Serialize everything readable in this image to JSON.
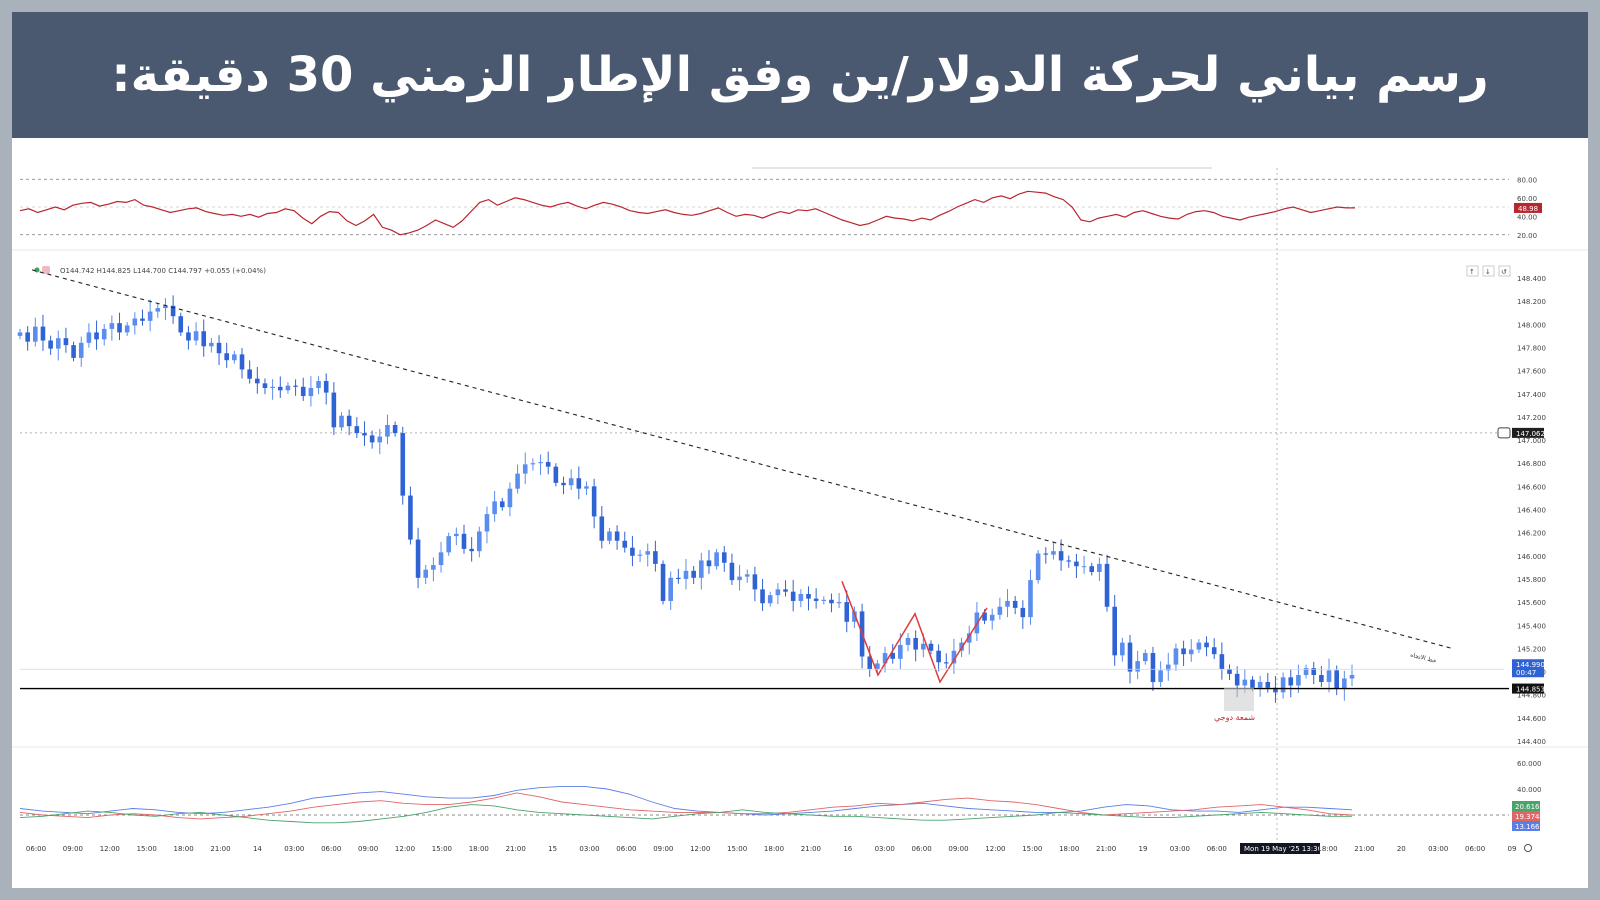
{
  "page": {
    "title": "رسم بياني لحركة الدولار/ين وفق الإطار الزمني 30 دقيقة:"
  },
  "chart_data": {
    "type": "candlestick",
    "symbol_ohlc": "O144.742 H144.825 L144.700 C144.797 +0.055 (+0.04%)",
    "price_ticks": [
      "148.400",
      "148.200",
      "148.000",
      "147.800",
      "147.600",
      "147.400",
      "147.200",
      "147.000",
      "146.800",
      "146.600",
      "146.400",
      "146.200",
      "146.000",
      "145.800",
      "145.600",
      "145.400",
      "145.200",
      "145.000",
      "144.800",
      "144.600",
      "144.400"
    ],
    "price_ylim": [
      144.4,
      148.4
    ],
    "rsi_ticks": [
      "80.00",
      "60.00",
      "40.00",
      "20.00"
    ],
    "rsi_ylim": [
      10,
      90
    ],
    "rsi_value": "48.98",
    "adx_ticks": [
      "60.000",
      "40.000"
    ],
    "adx_ylim": [
      10,
      70
    ],
    "adx_values": [
      "20.616",
      "19.374",
      "13.166"
    ],
    "x_labels": [
      "06:00",
      "09:00",
      "12:00",
      "15:00",
      "18:00",
      "21:00",
      "14",
      "03:00",
      "06:00",
      "09:00",
      "12:00",
      "15:00",
      "18:00",
      "21:00",
      "15",
      "03:00",
      "06:00",
      "09:00",
      "12:00",
      "15:00",
      "18:00",
      "21:00",
      "16",
      "03:00",
      "06:00",
      "09:00",
      "12:00",
      "15:00",
      "18:00",
      "21:00",
      "19",
      "03:00",
      "06:00",
      "09:00",
      "Mon 19 May '25  13:30",
      "18:00",
      "21:00",
      "20",
      "03:00",
      "06:00",
      "09"
    ],
    "crosshair_price": "147.062",
    "current_price": "144.990",
    "countdown": "00:47",
    "support_price": "144.853",
    "support_level": 144.853,
    "crosshair_level": 147.062,
    "trendline": {
      "label": "خط الاتجاه",
      "start_price": 148.47,
      "end_price": 145.2
    },
    "doji_label": "شمعة دوجي",
    "closes": [
      147.93,
      147.85,
      147.98,
      147.86,
      147.79,
      147.88,
      147.82,
      147.71,
      147.84,
      147.93,
      147.87,
      147.96,
      148.01,
      147.93,
      147.99,
      148.05,
      148.03,
      148.11,
      148.14,
      148.16,
      148.07,
      147.93,
      147.86,
      147.94,
      147.81,
      147.84,
      147.75,
      147.69,
      147.74,
      147.61,
      147.53,
      147.49,
      147.45,
      147.46,
      147.43,
      147.47,
      147.46,
      147.38,
      147.45,
      147.51,
      147.41,
      147.11,
      147.21,
      147.12,
      147.06,
      147.04,
      146.98,
      147.03,
      147.13,
      147.06,
      146.52,
      146.14,
      145.81,
      145.88,
      145.92,
      146.03,
      146.17,
      146.19,
      146.06,
      146.04,
      146.21,
      146.36,
      146.47,
      146.42,
      146.58,
      146.71,
      146.79,
      146.8,
      146.81,
      146.77,
      146.63,
      146.61,
      146.67,
      146.58,
      146.6,
      146.34,
      146.13,
      146.21,
      146.13,
      146.07,
      146.0,
      146.01,
      146.04,
      145.93,
      145.61,
      145.81,
      145.8,
      145.87,
      145.81,
      145.96,
      145.91,
      146.03,
      145.94,
      145.79,
      145.82,
      145.84,
      145.71,
      145.59,
      145.66,
      145.71,
      145.69,
      145.61,
      145.67,
      145.63,
      145.61,
      145.62,
      145.59,
      145.6,
      145.43,
      145.52,
      145.13,
      145.02,
      145.07,
      145.16,
      145.11,
      145.23,
      145.29,
      145.19,
      145.24,
      145.18,
      145.08,
      145.07,
      145.18,
      145.25,
      145.33,
      145.51,
      145.44,
      145.49,
      145.56,
      145.61,
      145.55,
      145.47,
      145.79,
      146.02,
      146.01,
      146.04,
      145.96,
      145.95,
      145.91,
      145.91,
      145.86,
      145.93,
      145.56,
      145.14,
      145.25,
      145.0,
      145.09,
      145.16,
      144.91,
      145.01,
      145.06,
      145.2,
      145.15,
      145.19,
      145.25,
      145.21,
      145.15,
      145.02,
      144.98,
      144.88,
      144.93,
      144.86,
      144.91,
      144.86,
      144.82,
      144.95,
      144.88,
      144.97,
      145.03,
      144.97,
      144.91,
      145.01,
      144.85,
      144.94,
      144.97
    ],
    "rsi": [
      46,
      48,
      44,
      47,
      50,
      47,
      52,
      54,
      55,
      51,
      53,
      56,
      55,
      58,
      52,
      50,
      47,
      44,
      46,
      48,
      49,
      45,
      43,
      41,
      42,
      40,
      42,
      39,
      43,
      44,
      48,
      46,
      38,
      32,
      40,
      45,
      44,
      35,
      30,
      35,
      42,
      28,
      25,
      20,
      22,
      25,
      30,
      36,
      32,
      28,
      35,
      45,
      55,
      58,
      52,
      56,
      60,
      58,
      55,
      52,
      50,
      53,
      55,
      51,
      48,
      52,
      55,
      53,
      50,
      46,
      44,
      43,
      45,
      47,
      44,
      42,
      41,
      43,
      46,
      49,
      44,
      40,
      42,
      41,
      38,
      42,
      45,
      43,
      47,
      46,
      48,
      44,
      40,
      36,
      33,
      30,
      32,
      36,
      40,
      38,
      37,
      35,
      38,
      36,
      41,
      45,
      50,
      54,
      58,
      55,
      60,
      62,
      59,
      64,
      67,
      66,
      65,
      61,
      58,
      50,
      36,
      34,
      38,
      40,
      42,
      39,
      44,
      46,
      43,
      40,
      38,
      37,
      42,
      45,
      46,
      44,
      40,
      38,
      36,
      39,
      41,
      43,
      45,
      48,
      50,
      47,
      44,
      46,
      48,
      50,
      49,
      48.98
    ],
    "adx": {
      "series1": [
        25,
        23,
        22,
        21,
        23,
        25,
        24,
        22,
        21,
        22,
        24,
        26,
        29,
        33,
        35,
        37,
        38,
        36,
        34,
        33,
        33,
        35,
        39,
        41,
        42,
        42,
        40,
        36,
        30,
        25,
        23,
        22,
        21,
        20,
        21,
        22,
        23,
        25,
        27,
        28,
        29,
        27,
        25,
        24,
        23,
        22,
        22,
        23,
        26,
        28,
        27,
        24,
        23,
        23,
        22,
        24,
        26,
        26,
        25,
        24
      ],
      "series2": [
        22,
        20,
        19,
        18,
        20,
        21,
        20,
        18,
        17,
        18,
        19,
        21,
        23,
        26,
        28,
        30,
        31,
        29,
        28,
        28,
        30,
        33,
        37,
        34,
        30,
        28,
        26,
        24,
        23,
        22,
        22,
        22,
        21,
        21,
        22,
        24,
        26,
        27,
        29,
        28,
        30,
        32,
        33,
        31,
        30,
        28,
        25,
        22,
        20,
        21,
        22,
        23,
        24,
        26,
        27,
        28,
        26,
        24,
        21,
        20
      ],
      "series3": [
        18,
        19,
        21,
        23,
        22,
        20,
        19,
        21,
        22,
        20,
        18,
        16,
        15,
        14,
        14,
        15,
        17,
        19,
        22,
        26,
        28,
        27,
        24,
        22,
        21,
        20,
        19,
        18,
        17,
        19,
        21,
        22,
        24,
        22,
        21,
        20,
        19,
        19,
        18,
        17,
        16,
        16,
        17,
        18,
        19,
        20,
        22,
        21,
        20,
        19,
        18,
        18,
        19,
        20,
        21,
        22,
        21,
        20,
        19,
        19
      ],
      "colors": [
        "#5b7ee5",
        "#e06666",
        "#49a36b"
      ]
    },
    "colors": {
      "up": "#5b8dee",
      "down": "#2f62d2",
      "rsi": "#b8262f",
      "trendline": "#222222",
      "pattern": "#e03b3b",
      "support": "#000000",
      "title_bg": "#4a5870"
    }
  }
}
